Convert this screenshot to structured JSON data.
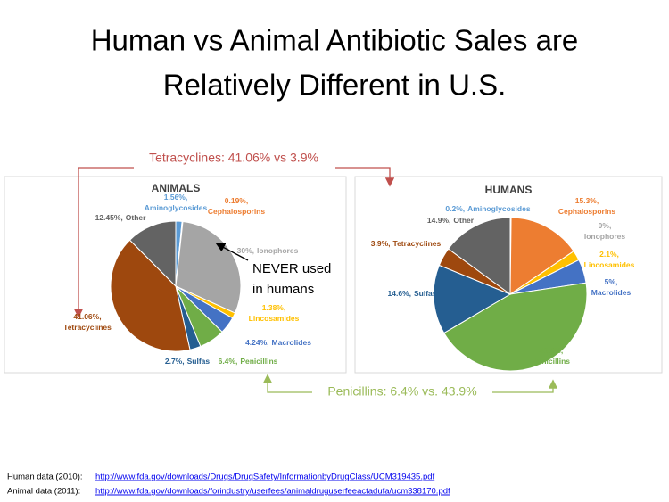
{
  "title": [
    "Human vs Animal Antibiotic Sales are",
    "Relatively Different in U.S."
  ],
  "chart_data": [
    {
      "type": "pie",
      "title": "ANIMALS",
      "categories": [
        "Aminoglycosides",
        "Cephalosporins",
        "Ionophores",
        "Lincosamides",
        "Macrolides",
        "Penicillins",
        "Sulfas",
        "Tetracyclines",
        "Other"
      ],
      "values": [
        1.56,
        0.19,
        30,
        1.38,
        4.24,
        6.4,
        2.7,
        41.06,
        12.45
      ],
      "value_labels": [
        "1.56%,",
        "0.19%,",
        "30%,",
        "1.38%,",
        "4.24%,",
        "6.4%,",
        "2.7%,",
        "41.06%,",
        "12.45%,"
      ],
      "colors": [
        "#5b9bd5",
        "#ed7d31",
        "#a5a5a5",
        "#ffc000",
        "#4472c4",
        "#70ad47",
        "#255e91",
        "#9e480e",
        "#636363"
      ]
    },
    {
      "type": "pie",
      "title": "HUMANS",
      "categories": [
        "Aminoglycosides",
        "Cephalosporins",
        "Ionophores",
        "Lincosamides",
        "Macrolides",
        "Penicillins",
        "Sulfas",
        "Tetracyclines",
        "Other"
      ],
      "values": [
        0.2,
        15.3,
        0,
        2.1,
        5,
        43.9,
        14.6,
        3.9,
        14.9
      ],
      "value_labels": [
        "0.2%,",
        "15.3%,",
        "0%,",
        "2.1%,",
        "5%,",
        "43.9%,",
        "14.6%,",
        "3.9%,",
        "14.9%,"
      ],
      "colors": [
        "#5b9bd5",
        "#ed7d31",
        "#a5a5a5",
        "#ffc000",
        "#4472c4",
        "#70ad47",
        "#255e91",
        "#9e480e",
        "#636363"
      ]
    }
  ],
  "annotations": {
    "tetracyclines": "Tetracyclines: 41.06% vs 3.9%",
    "penicillins": "Penicillins: 6.4% vs. 43.9%",
    "never_used": [
      "NEVER used",
      "in humans"
    ]
  },
  "sources": [
    {
      "label": "Human data (2010):",
      "url": "http://www.fda.gov/downloads/Drugs/DrugSafety/InformationbyDrugClass/UCM319435.pdf"
    },
    {
      "label": "Animal data (2011):",
      "url": "http://www.fda.gov/downloads/forindustry/userfees/animaldruguserfeeactadufa/ucm338170.pdf"
    }
  ]
}
